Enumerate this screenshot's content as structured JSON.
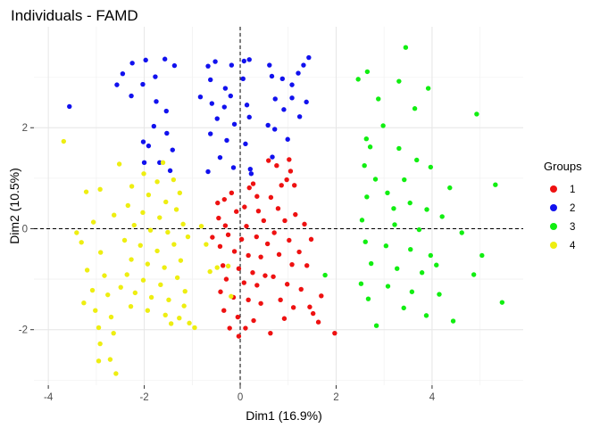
{
  "chart_data": {
    "type": "scatter",
    "title": "Individuals - FAMD",
    "xlabel": "Dim1 (16.9%)",
    "ylabel": "Dim2 (10.5%)",
    "xlim": [
      -4.3,
      5.9
    ],
    "ylim": [
      -3.1,
      4.0
    ],
    "xticks": [
      -4,
      -2,
      0,
      2,
      4
    ],
    "yticks": [
      -2,
      0,
      2
    ],
    "grid": true,
    "reference_lines": {
      "x": 0,
      "y": 0,
      "style": "dashed"
    },
    "legend": {
      "title": "Groups",
      "position": "right"
    },
    "series": [
      {
        "name": "1",
        "color": "#ee1111",
        "points": [
          [
            1.02,
            1.37
          ],
          [
            1.05,
            1.14
          ],
          [
            0.76,
            1.25
          ],
          [
            0.59,
            1.35
          ],
          [
            0.27,
            0.89
          ],
          [
            0.19,
            0.81
          ],
          [
            0.64,
            0.62
          ],
          [
            0.97,
            0.97
          ],
          [
            1.13,
            0.86
          ],
          [
            0.86,
            0.86
          ],
          [
            -0.33,
            0.58
          ],
          [
            -0.47,
            0.51
          ],
          [
            0.09,
            0.43
          ],
          [
            -0.08,
            0.34
          ],
          [
            0.38,
            0.35
          ],
          [
            0.49,
            0.16
          ],
          [
            0.13,
            0.05
          ],
          [
            -0.31,
            0.06
          ],
          [
            -0.45,
            0.21
          ],
          [
            -0.25,
            -0.12
          ],
          [
            0.03,
            -0.21
          ],
          [
            0.34,
            -0.16
          ],
          [
            0.57,
            -0.3
          ],
          [
            -0.42,
            -0.35
          ],
          [
            -0.12,
            -0.45
          ],
          [
            0.17,
            -0.53
          ],
          [
            0.43,
            -0.56
          ],
          [
            -0.36,
            -0.73
          ],
          [
            -0.03,
            -0.79
          ],
          [
            0.26,
            -0.87
          ],
          [
            0.52,
            -0.93
          ],
          [
            -0.29,
            -1.0
          ],
          [
            0.08,
            -1.07
          ],
          [
            0.35,
            -1.12
          ],
          [
            -0.41,
            -1.25
          ],
          [
            -0.14,
            -1.36
          ],
          [
            0.17,
            -1.41
          ],
          [
            0.43,
            -1.48
          ],
          [
            -0.34,
            -1.62
          ],
          [
            -0.05,
            -1.75
          ],
          [
            0.28,
            -1.82
          ],
          [
            -0.22,
            -1.97
          ],
          [
            0.11,
            -1.97
          ],
          [
            -0.03,
            -2.13
          ],
          [
            0.63,
            -2.07
          ],
          [
            0.79,
            0.4
          ],
          [
            0.93,
            0.16
          ],
          [
            1.15,
            0.28
          ],
          [
            0.71,
            -0.08
          ],
          [
            1.02,
            -0.23
          ],
          [
            1.34,
            0.09
          ],
          [
            1.23,
            -0.46
          ],
          [
            0.81,
            -0.51
          ],
          [
            1.08,
            -0.71
          ],
          [
            1.39,
            -0.73
          ],
          [
            0.69,
            -0.95
          ],
          [
            0.98,
            -1.1
          ],
          [
            1.27,
            -1.2
          ],
          [
            0.84,
            -1.41
          ],
          [
            1.11,
            -1.56
          ],
          [
            1.45,
            -1.55
          ],
          [
            1.63,
            -1.85
          ],
          [
            1.97,
            -2.07
          ],
          [
            1.69,
            -1.33
          ],
          [
            1.52,
            -1.68
          ],
          [
            1.48,
            -0.21
          ],
          [
            0.92,
            -1.78
          ],
          [
            0.35,
            0.64
          ],
          [
            -0.58,
            -0.17
          ],
          [
            -0.18,
            0.71
          ]
        ]
      },
      {
        "name": "2",
        "color": "#1111ee",
        "points": [
          [
            -2.45,
            3.07
          ],
          [
            -2.25,
            3.28
          ],
          [
            -1.97,
            3.34
          ],
          [
            -1.57,
            3.36
          ],
          [
            -1.37,
            3.23
          ],
          [
            -1.77,
            3.01
          ],
          [
            -2.57,
            2.85
          ],
          [
            -2.03,
            2.86
          ],
          [
            -3.56,
            2.42
          ],
          [
            -2.27,
            2.63
          ],
          [
            -1.75,
            2.52
          ],
          [
            -1.54,
            2.33
          ],
          [
            -1.8,
            2.03
          ],
          [
            -1.53,
            1.89
          ],
          [
            -1.91,
            1.64
          ],
          [
            -1.41,
            1.56
          ],
          [
            -1.68,
            1.31
          ],
          [
            -1.46,
            1.15
          ],
          [
            -2.02,
            1.72
          ],
          [
            -2.0,
            1.31
          ],
          [
            -0.67,
            3.22
          ],
          [
            -0.52,
            3.31
          ],
          [
            -0.18,
            3.24
          ],
          [
            0.08,
            3.32
          ],
          [
            0.19,
            3.35
          ],
          [
            -0.62,
            2.95
          ],
          [
            -0.31,
            2.78
          ],
          [
            0.06,
            2.97
          ],
          [
            -0.59,
            2.48
          ],
          [
            -0.2,
            2.63
          ],
          [
            0.14,
            2.45
          ],
          [
            -0.48,
            2.18
          ],
          [
            -0.12,
            2.07
          ],
          [
            0.19,
            2.21
          ],
          [
            -0.62,
            1.88
          ],
          [
            -0.28,
            1.75
          ],
          [
            0.11,
            1.68
          ],
          [
            -0.42,
            1.41
          ],
          [
            -0.14,
            1.21
          ],
          [
            0.23,
            1.09
          ],
          [
            -0.67,
            1.13
          ],
          [
            0.61,
            3.24
          ],
          [
            0.66,
            3.02
          ],
          [
            0.88,
            2.97
          ],
          [
            1.08,
            2.85
          ],
          [
            1.32,
            3.24
          ],
          [
            1.43,
            3.39
          ],
          [
            1.21,
            3.08
          ],
          [
            0.73,
            2.57
          ],
          [
            0.91,
            2.36
          ],
          [
            1.08,
            2.59
          ],
          [
            1.38,
            2.51
          ],
          [
            1.24,
            2.22
          ],
          [
            0.72,
            1.97
          ],
          [
            0.99,
            1.77
          ],
          [
            0.67,
            1.42
          ],
          [
            0.21,
            1.18
          ],
          [
            -0.33,
            2.41
          ],
          [
            -0.83,
            2.61
          ],
          [
            0.58,
            2.05
          ]
        ]
      },
      {
        "name": "3",
        "color": "#11ee11",
        "points": [
          [
            3.45,
            3.59
          ],
          [
            2.65,
            3.11
          ],
          [
            3.31,
            2.92
          ],
          [
            2.46,
            2.96
          ],
          [
            3.92,
            2.78
          ],
          [
            4.93,
            2.27
          ],
          [
            2.88,
            2.57
          ],
          [
            3.64,
            2.38
          ],
          [
            2.98,
            2.04
          ],
          [
            2.63,
            1.78
          ],
          [
            2.71,
            1.62
          ],
          [
            3.31,
            1.59
          ],
          [
            3.68,
            1.36
          ],
          [
            2.59,
            1.25
          ],
          [
            3.97,
            1.22
          ],
          [
            2.82,
            0.98
          ],
          [
            3.42,
            0.97
          ],
          [
            4.37,
            0.81
          ],
          [
            5.32,
            0.87
          ],
          [
            3.07,
            0.71
          ],
          [
            2.64,
            0.63
          ],
          [
            3.54,
            0.51
          ],
          [
            3.89,
            0.38
          ],
          [
            4.21,
            0.24
          ],
          [
            2.54,
            0.17
          ],
          [
            3.22,
            0.08
          ],
          [
            3.73,
            -0.02
          ],
          [
            4.62,
            -0.08
          ],
          [
            2.61,
            -0.26
          ],
          [
            3.04,
            -0.34
          ],
          [
            3.55,
            -0.41
          ],
          [
            3.97,
            -0.53
          ],
          [
            5.04,
            -0.53
          ],
          [
            2.73,
            -0.69
          ],
          [
            3.27,
            -0.79
          ],
          [
            3.79,
            -0.87
          ],
          [
            4.87,
            -0.91
          ],
          [
            2.52,
            -1.09
          ],
          [
            3.08,
            -1.14
          ],
          [
            3.58,
            -1.25
          ],
          [
            4.15,
            -1.3
          ],
          [
            2.67,
            -1.39
          ],
          [
            3.41,
            -1.57
          ],
          [
            3.88,
            -1.72
          ],
          [
            4.44,
            -1.83
          ],
          [
            2.84,
            -1.92
          ],
          [
            1.77,
            -0.92
          ],
          [
            5.46,
            -1.46
          ],
          [
            4.09,
            -0.72
          ],
          [
            3.2,
            0.4
          ]
        ]
      },
      {
        "name": "4",
        "color": "#eeee11",
        "points": [
          [
            -3.68,
            1.73
          ],
          [
            -2.52,
            1.28
          ],
          [
            -2.92,
            0.78
          ],
          [
            -1.61,
            1.31
          ],
          [
            -2.01,
            1.09
          ],
          [
            -1.73,
            0.93
          ],
          [
            -1.39,
            0.97
          ],
          [
            -2.26,
            0.84
          ],
          [
            -1.91,
            0.67
          ],
          [
            -1.55,
            0.53
          ],
          [
            -1.26,
            0.71
          ],
          [
            -2.34,
            0.46
          ],
          [
            -2.03,
            0.32
          ],
          [
            -1.68,
            0.22
          ],
          [
            -1.33,
            0.38
          ],
          [
            -2.21,
            0.07
          ],
          [
            -1.87,
            -0.03
          ],
          [
            -1.51,
            -0.07
          ],
          [
            -1.19,
            0.09
          ],
          [
            -2.41,
            -0.23
          ],
          [
            -2.08,
            -0.33
          ],
          [
            -1.73,
            -0.44
          ],
          [
            -1.38,
            -0.31
          ],
          [
            -2.27,
            -0.61
          ],
          [
            -1.93,
            -0.7
          ],
          [
            -1.58,
            -0.77
          ],
          [
            -1.24,
            -0.63
          ],
          [
            -2.36,
            -0.91
          ],
          [
            -2.02,
            -1.02
          ],
          [
            -1.66,
            -1.11
          ],
          [
            -1.31,
            -0.97
          ],
          [
            -2.19,
            -1.27
          ],
          [
            -1.85,
            -1.36
          ],
          [
            -1.49,
            -1.41
          ],
          [
            -1.15,
            -1.24
          ],
          [
            -2.28,
            -1.54
          ],
          [
            -1.93,
            -1.62
          ],
          [
            -1.56,
            -1.71
          ],
          [
            -1.27,
            -1.77
          ],
          [
            -1.06,
            -1.87
          ],
          [
            -0.95,
            -1.96
          ],
          [
            -1.17,
            -1.53
          ],
          [
            -3.21,
            0.73
          ],
          [
            -3.06,
            0.13
          ],
          [
            -3.31,
            -0.27
          ],
          [
            -2.91,
            -0.47
          ],
          [
            -3.19,
            -0.82
          ],
          [
            -2.83,
            -0.93
          ],
          [
            -3.08,
            -1.22
          ],
          [
            -2.76,
            -1.31
          ],
          [
            -3.02,
            -1.62
          ],
          [
            -2.69,
            -1.75
          ],
          [
            -2.95,
            -1.96
          ],
          [
            -2.64,
            -2.07
          ],
          [
            -2.92,
            -2.28
          ],
          [
            -2.71,
            -2.59
          ],
          [
            -2.95,
            -2.62
          ],
          [
            -2.59,
            -2.87
          ],
          [
            -3.41,
            -0.08
          ],
          [
            -3.26,
            -1.47
          ],
          [
            -0.71,
            -0.31
          ],
          [
            -0.48,
            -0.77
          ],
          [
            -0.63,
            -0.85
          ],
          [
            -0.25,
            -0.74
          ],
          [
            -0.19,
            -1.34
          ],
          [
            -1.09,
            -0.16
          ],
          [
            -0.81,
            0.05
          ],
          [
            -2.63,
            0.27
          ],
          [
            -1.44,
            -1.88
          ],
          [
            -2.49,
            -1.16
          ]
        ]
      }
    ]
  }
}
